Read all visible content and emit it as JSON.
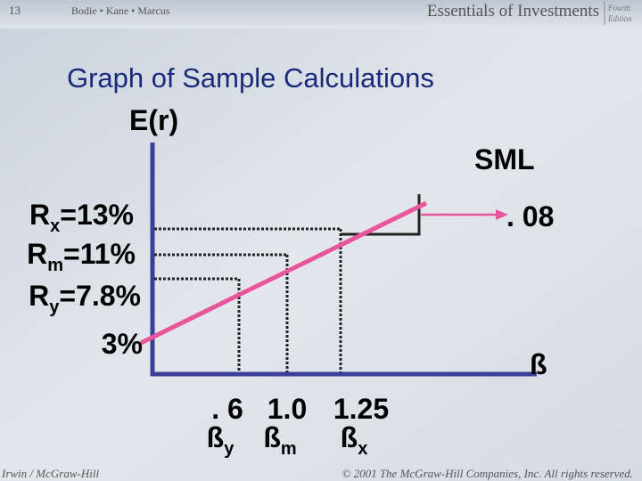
{
  "header": {
    "slide_number": "13",
    "authors": "Bodie • Kane • Marcus",
    "book": "Essentials of Investments",
    "edition": [
      "Fourth",
      "Edition"
    ]
  },
  "title": "Graph of Sample Calculations",
  "graph": {
    "y_axis_label": "E(r)",
    "line_label": "SML",
    "annotation": ". 08",
    "x_axis_label": "ß",
    "returns": [
      {
        "base": "R",
        "sub": "x",
        "rest": "=13%"
      },
      {
        "base": "R",
        "sub": "m",
        "rest": "=11%"
      },
      {
        "base": "R",
        "sub": "y",
        "rest": "=7.8%"
      },
      {
        "base": "3%"
      }
    ],
    "betas": [
      {
        "value": ". 6",
        "base": "ß",
        "sub": "y"
      },
      {
        "value": "1.0",
        "base": "ß",
        "sub": "m"
      },
      {
        "value": "1.25",
        "base": "ß",
        "sub": "x"
      }
    ]
  },
  "footer": {
    "publisher": "Irwin / McGraw-Hill",
    "copyright": "© 2001 The McGraw-Hill Companies, Inc. All rights reserved."
  }
}
